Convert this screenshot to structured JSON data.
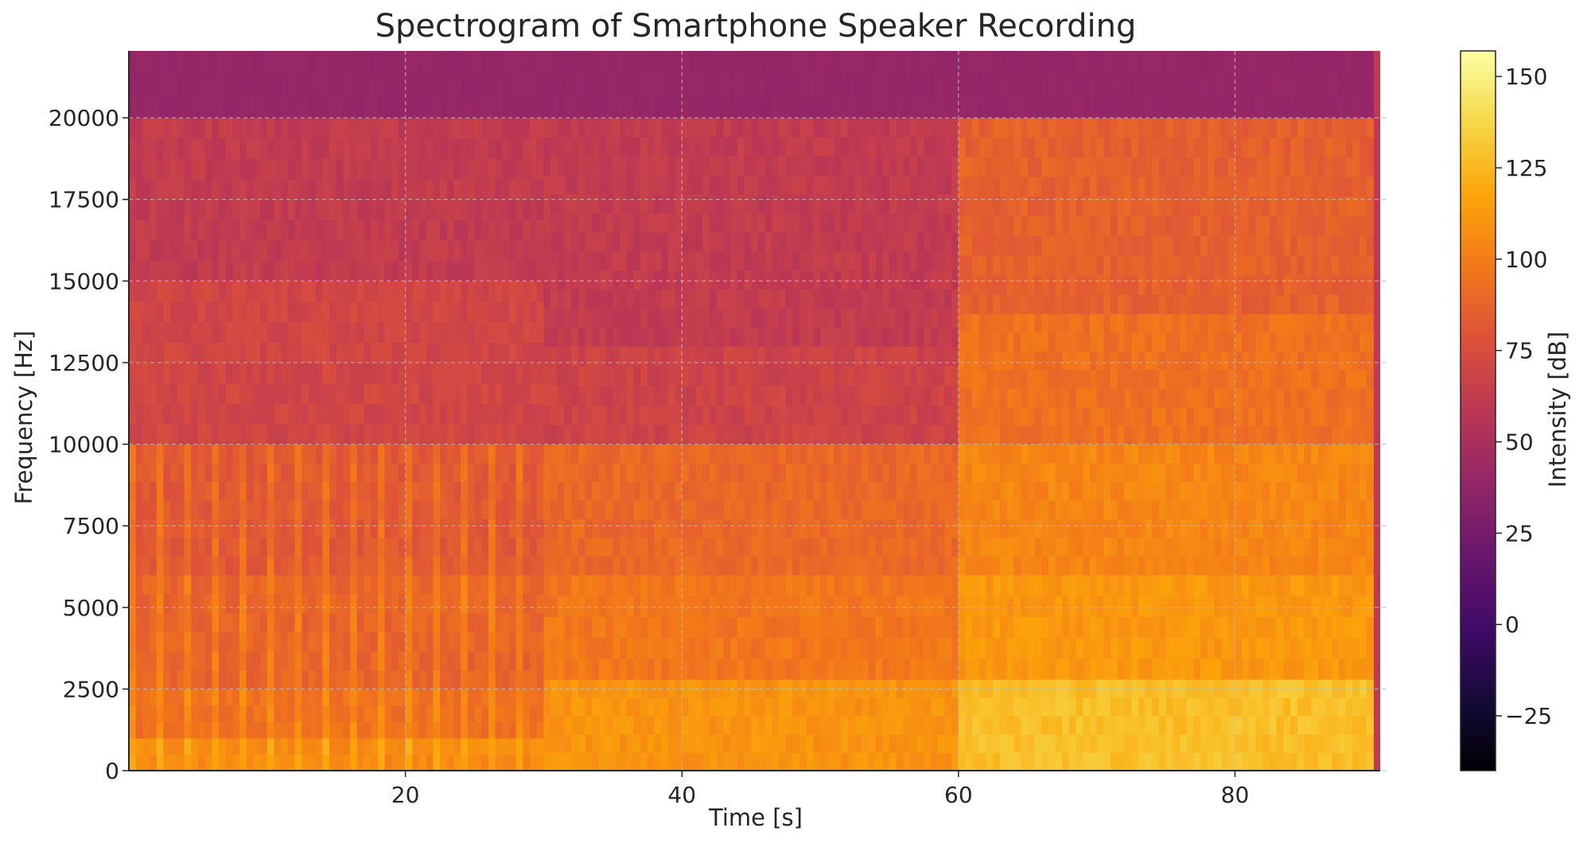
{
  "chart_data": {
    "type": "heatmap",
    "title": "Spectrogram of Smartphone Speaker Recording",
    "xlabel": "Time [s]",
    "ylabel": "Frequency [Hz]",
    "colorbar_label": "Intensity [dB]",
    "colormap": "inferno",
    "xlim": [
      0,
      90.5
    ],
    "ylim": [
      0,
      22050
    ],
    "xticks": [
      20,
      40,
      60,
      80
    ],
    "yticks": [
      0,
      2500,
      5000,
      7500,
      10000,
      12500,
      15000,
      17500,
      20000
    ],
    "colorbar_range": [
      -40,
      157
    ],
    "colorbar_ticks": [
      -25,
      0,
      25,
      50,
      75,
      100,
      125,
      150
    ],
    "grid": true,
    "segments": [
      {
        "t_start": 0,
        "t_end": 30,
        "pattern": "periodic pulses, strong low band",
        "bands": [
          {
            "f_min": 0,
            "f_max": 1000,
            "db": 110
          },
          {
            "f_min": 1000,
            "f_max": 2500,
            "db": 98
          },
          {
            "f_min": 2500,
            "f_max": 6000,
            "db": 92
          },
          {
            "f_min": 6000,
            "f_max": 10000,
            "db": 86
          },
          {
            "f_min": 10000,
            "f_max": 15000,
            "db": 70
          },
          {
            "f_min": 15000,
            "f_max": 20000,
            "db": 62
          },
          {
            "f_min": 20000,
            "f_max": 22050,
            "db": 40
          }
        ]
      },
      {
        "t_start": 30,
        "t_end": 60,
        "pattern": "dense broadband",
        "bands": [
          {
            "f_min": 0,
            "f_max": 2800,
            "db": 110
          },
          {
            "f_min": 2800,
            "f_max": 6000,
            "db": 97
          },
          {
            "f_min": 6000,
            "f_max": 10000,
            "db": 90
          },
          {
            "f_min": 10000,
            "f_max": 13000,
            "db": 68
          },
          {
            "f_min": 13000,
            "f_max": 20000,
            "db": 62
          },
          {
            "f_min": 20000,
            "f_max": 22050,
            "db": 40
          }
        ]
      },
      {
        "t_start": 60,
        "t_end": 90,
        "pattern": "loud broadband",
        "bands": [
          {
            "f_min": 0,
            "f_max": 2800,
            "db": 128
          },
          {
            "f_min": 2800,
            "f_max": 6000,
            "db": 112
          },
          {
            "f_min": 6000,
            "f_max": 10000,
            "db": 104
          },
          {
            "f_min": 10000,
            "f_max": 14000,
            "db": 94
          },
          {
            "f_min": 14000,
            "f_max": 20000,
            "db": 86
          },
          {
            "f_min": 20000,
            "f_max": 22050,
            "db": 40
          }
        ]
      }
    ]
  }
}
